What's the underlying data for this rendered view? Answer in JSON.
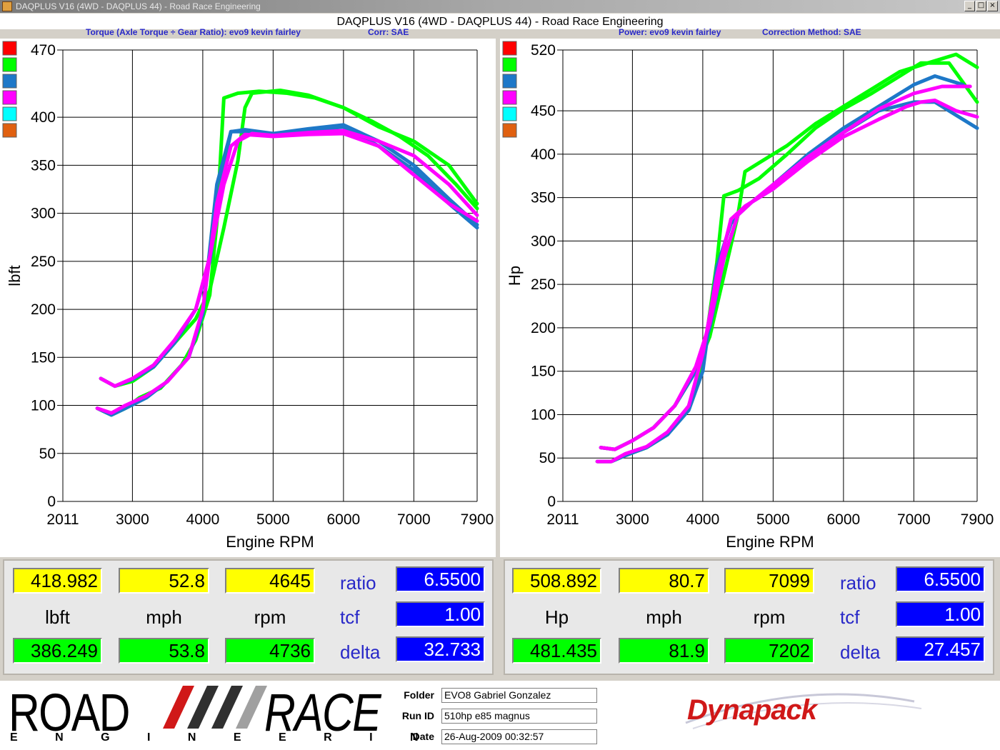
{
  "window": {
    "title": "DAQPLUS V16 (4WD - DAQPLUS 44) - Road Race Engineering"
  },
  "header": {
    "title": "DAQPLUS V16 (4WD - DAQPLUS 44) - Road Race Engineering",
    "left_sub_a": "Torque (Axle Torque ÷ Gear Ratio): evo9 kevin fairley",
    "left_sub_b": "Corr: SAE",
    "right_sub_a": "Power: evo9 kevin fairley",
    "right_sub_b": "Correction Method: SAE"
  },
  "legend_colors": [
    "#ff0000",
    "#00ff00",
    "#1e78c8",
    "#ff00ff",
    "#00ffff",
    "#e06010"
  ],
  "chart_data": [
    {
      "type": "line",
      "xlabel": "Engine RPM",
      "ylabel": "lbft",
      "xlim": [
        2011,
        7900
      ],
      "ylim": [
        0,
        470
      ],
      "xticks": [
        2011,
        3000,
        4000,
        5000,
        6000,
        7000,
        7900
      ],
      "yticks": [
        0,
        50,
        100,
        150,
        200,
        250,
        300,
        350,
        400,
        470
      ],
      "grid": true,
      "series": [
        {
          "color": "#00ff00",
          "x": [
            2500,
            2700,
            2900,
            3100,
            3400,
            3700,
            3900,
            4100,
            4200,
            4300,
            4500,
            4800,
            5200,
            5600,
            6000,
            6400,
            6800,
            7200,
            7600,
            7900
          ],
          "y": [
            97,
            90,
            97,
            108,
            118,
            142,
            168,
            215,
            290,
            420,
            425,
            427,
            425,
            420,
            410,
            396,
            380,
            360,
            330,
            305
          ]
        },
        {
          "color": "#00ff00",
          "x": [
            2550,
            2750,
            3000,
            3300,
            3600,
            3900,
            4100,
            4300,
            4500,
            4600,
            4700,
            5100,
            5500,
            6000,
            6500,
            7000,
            7500,
            7900
          ],
          "y": [
            128,
            120,
            125,
            140,
            165,
            190,
            220,
            285,
            355,
            410,
            425,
            428,
            423,
            410,
            390,
            375,
            350,
            310
          ]
        },
        {
          "color": "#1e78c8",
          "x": [
            2500,
            2700,
            2900,
            3200,
            3500,
            3800,
            4000,
            4200,
            4400,
            4600,
            5000,
            5500,
            6000,
            6500,
            7000,
            7500,
            7900
          ],
          "y": [
            97,
            90,
            97,
            108,
            125,
            150,
            195,
            330,
            385,
            385,
            383,
            386,
            390,
            370,
            345,
            310,
            285
          ]
        },
        {
          "color": "#1e78c8",
          "x": [
            2550,
            2750,
            3000,
            3300,
            3600,
            3900,
            4100,
            4300,
            4400,
            4600,
            5000,
            5500,
            6000,
            6500,
            7000,
            7500,
            7900
          ],
          "y": [
            128,
            120,
            127,
            140,
            165,
            200,
            250,
            350,
            385,
            387,
            383,
            388,
            392,
            375,
            350,
            315,
            288
          ]
        },
        {
          "color": "#ff00ff",
          "x": [
            2500,
            2700,
            2900,
            3200,
            3500,
            3800,
            4000,
            4200,
            4400,
            4600,
            5000,
            5500,
            6000,
            6500,
            7000,
            7500,
            7900
          ],
          "y": [
            97,
            92,
            100,
            110,
            125,
            150,
            200,
            310,
            370,
            382,
            380,
            382,
            383,
            370,
            340,
            310,
            292
          ]
        },
        {
          "color": "#ff00ff",
          "x": [
            2550,
            2750,
            3000,
            3300,
            3600,
            3900,
            4100,
            4300,
            4500,
            4700,
            5000,
            5500,
            6000,
            6500,
            7000,
            7500,
            7900
          ],
          "y": [
            128,
            120,
            128,
            142,
            168,
            200,
            255,
            330,
            375,
            383,
            381,
            384,
            386,
            375,
            360,
            330,
            298
          ]
        }
      ]
    },
    {
      "type": "line",
      "xlabel": "Engine RPM",
      "ylabel": "Hp",
      "xlim": [
        2011,
        7900
      ],
      "ylim": [
        0,
        520
      ],
      "xticks": [
        2011,
        3000,
        4000,
        5000,
        6000,
        7000,
        7900
      ],
      "yticks": [
        0,
        50,
        100,
        150,
        200,
        250,
        300,
        350,
        400,
        450,
        520
      ],
      "grid": true,
      "series": [
        {
          "color": "#00ff00",
          "x": [
            2500,
            2700,
            2900,
            3200,
            3500,
            3800,
            4000,
            4200,
            4300,
            4500,
            4800,
            5200,
            5600,
            6000,
            6400,
            6800,
            7100,
            7500,
            7900
          ],
          "y": [
            46,
            46,
            53,
            62,
            77,
            110,
            160,
            275,
            352,
            358,
            372,
            400,
            430,
            452,
            470,
            490,
            505,
            505,
            460
          ]
        },
        {
          "color": "#00ff00",
          "x": [
            2550,
            2750,
            3000,
            3300,
            3600,
            3900,
            4100,
            4300,
            4500,
            4600,
            4800,
            5200,
            5600,
            6000,
            6400,
            6800,
            7200,
            7600,
            7900
          ],
          "y": [
            62,
            60,
            70,
            85,
            110,
            150,
            190,
            260,
            330,
            380,
            390,
            410,
            435,
            455,
            475,
            495,
            505,
            515,
            500
          ]
        },
        {
          "color": "#1e78c8",
          "x": [
            2500,
            2700,
            2900,
            3200,
            3500,
            3800,
            4000,
            4200,
            4400,
            4600,
            5000,
            5500,
            6000,
            6500,
            7000,
            7300,
            7600,
            7900
          ],
          "y": [
            46,
            46,
            53,
            62,
            77,
            105,
            150,
            270,
            320,
            340,
            360,
            395,
            425,
            450,
            460,
            460,
            445,
            430
          ]
        },
        {
          "color": "#1e78c8",
          "x": [
            2550,
            2750,
            3000,
            3300,
            3600,
            3900,
            4100,
            4300,
            4500,
            4700,
            5000,
            5500,
            6000,
            6500,
            7000,
            7300,
            7700
          ],
          "y": [
            62,
            60,
            70,
            85,
            110,
            150,
            200,
            280,
            330,
            345,
            365,
            400,
            430,
            455,
            480,
            490,
            480
          ]
        },
        {
          "color": "#ff00ff",
          "x": [
            2500,
            2700,
            2900,
            3200,
            3500,
            3800,
            4000,
            4200,
            4400,
            4600,
            5000,
            5500,
            6000,
            6500,
            6900,
            7100,
            7300,
            7600,
            7900
          ],
          "y": [
            46,
            46,
            55,
            63,
            80,
            110,
            170,
            260,
            325,
            340,
            360,
            392,
            420,
            440,
            455,
            460,
            462,
            450,
            443
          ]
        },
        {
          "color": "#ff00ff",
          "x": [
            2550,
            2750,
            3000,
            3300,
            3600,
            3900,
            4100,
            4300,
            4500,
            4700,
            5000,
            5500,
            6000,
            6500,
            7000,
            7400,
            7800
          ],
          "y": [
            62,
            60,
            70,
            85,
            110,
            155,
            205,
            280,
            330,
            345,
            365,
            397,
            425,
            452,
            470,
            478,
            478
          ]
        }
      ]
    }
  ],
  "panels": [
    {
      "row1": [
        "418.982",
        "52.8",
        "4645"
      ],
      "units": [
        "lbft",
        "mph",
        "rpm"
      ],
      "row2": [
        "386.249",
        "53.8",
        "4736"
      ],
      "labels": [
        "ratio",
        "tcf",
        "delta"
      ],
      "values": [
        "6.5500",
        "1.00",
        "32.733"
      ]
    },
    {
      "row1": [
        "508.892",
        "80.7",
        "7099"
      ],
      "units": [
        "Hp",
        "mph",
        "rpm"
      ],
      "row2": [
        "481.435",
        "81.9",
        "7202"
      ],
      "labels": [
        "ratio",
        "tcf",
        "delta"
      ],
      "values": [
        "6.5500",
        "1.00",
        "27.457"
      ]
    }
  ],
  "footer": {
    "logo_road": "ROAD",
    "logo_race": "RACE",
    "logo_engineering": "E N G I N E E R I N G",
    "folder_label": "Folder",
    "folder_value": "EVO8 Gabriel Gonzalez",
    "runid_label": "Run ID",
    "runid_value": "510hp e85 magnus",
    "date_label": "Date",
    "date_value": "26-Aug-2009  00:32:57",
    "brand": "Dynapack"
  }
}
